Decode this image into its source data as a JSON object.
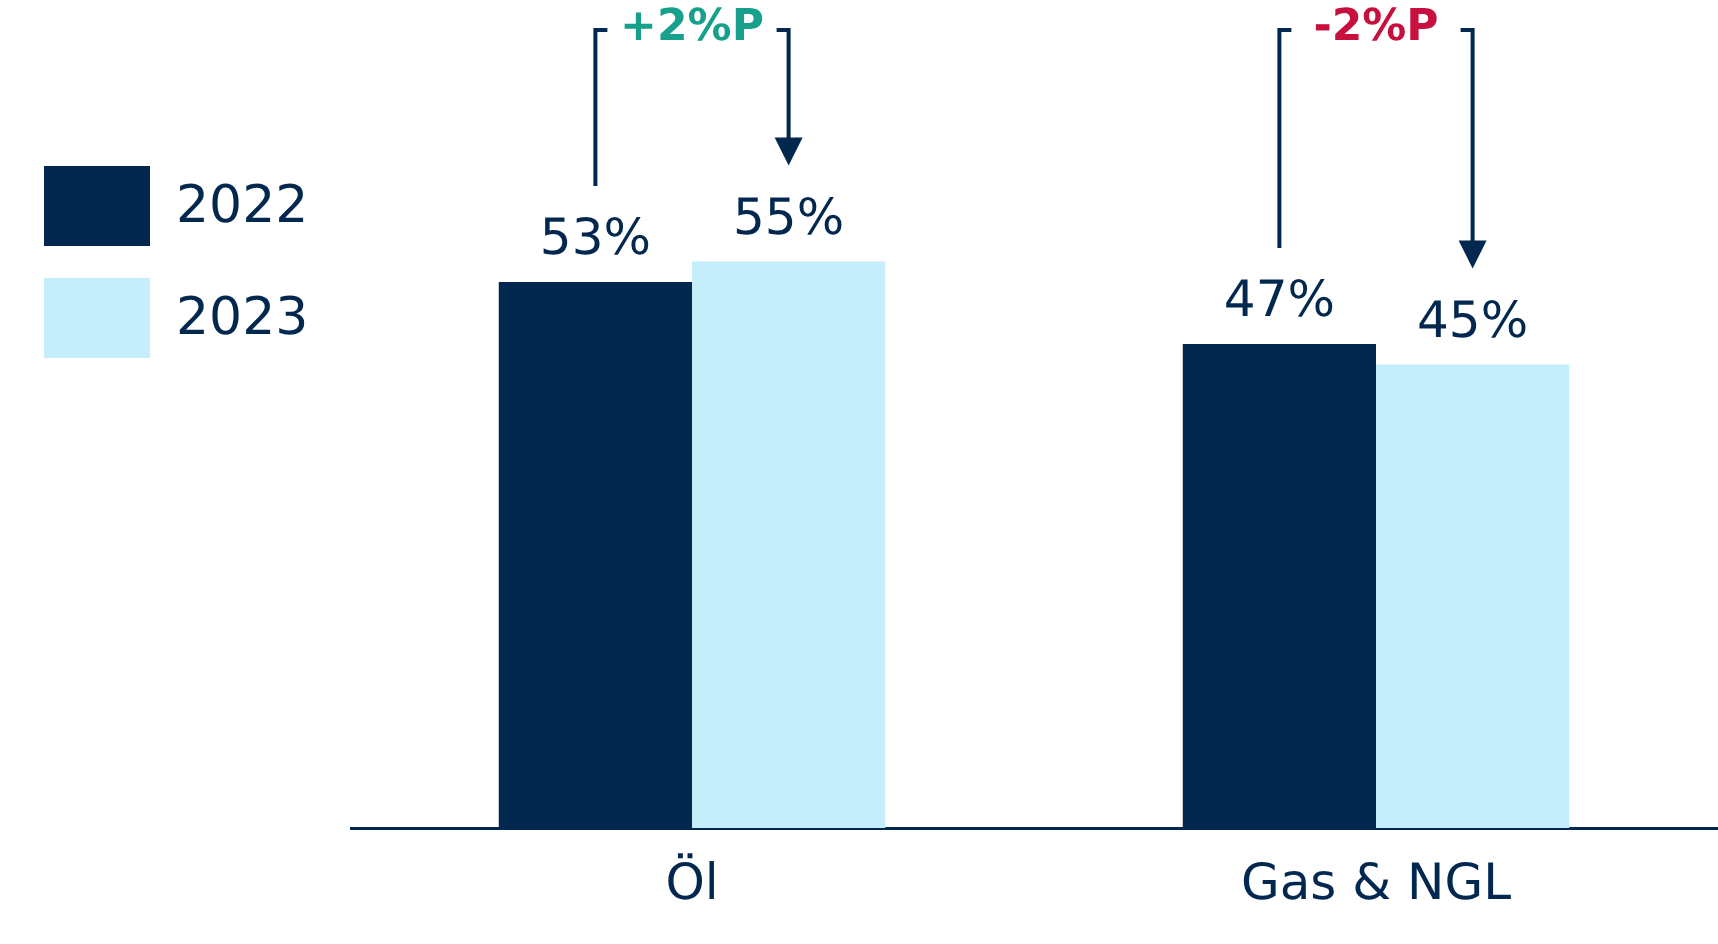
{
  "chart_data": {
    "type": "bar",
    "categories": [
      "Öl",
      "Gas & NGL"
    ],
    "series": [
      {
        "name": "2022",
        "color": "#03284f",
        "values": [
          53,
          47
        ],
        "value_labels": [
          "53%",
          "47%"
        ]
      },
      {
        "name": "2023",
        "color": "#c4eef9",
        "values": [
          55,
          45
        ],
        "value_labels": [
          "55%",
          "45%"
        ]
      }
    ],
    "legend": "left",
    "annotations": [
      "+2%P",
      "-2%P"
    ]
  }
}
